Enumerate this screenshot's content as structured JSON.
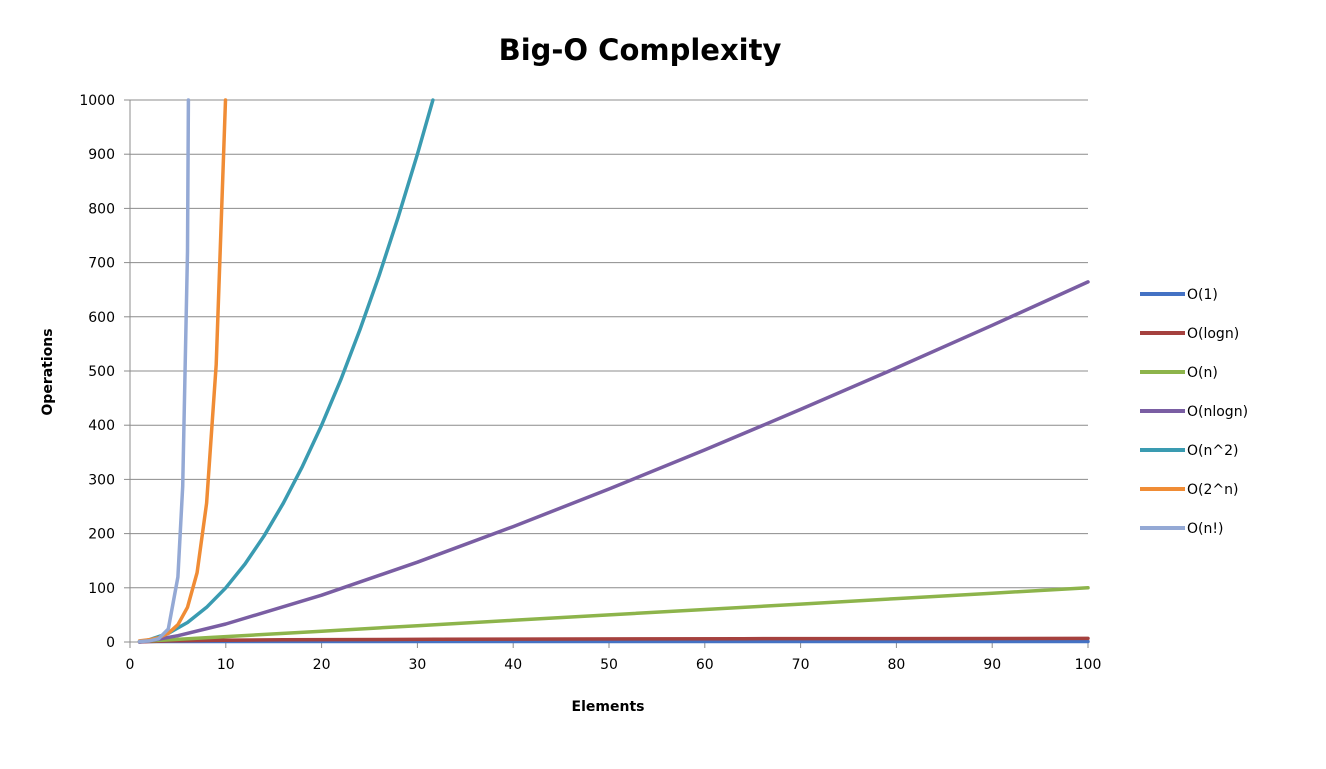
{
  "chart_data": {
    "type": "line",
    "title": "Big-O Complexity",
    "xlabel": "Elements",
    "ylabel": "Operations",
    "xlim": [
      0,
      100
    ],
    "ylim": [
      0,
      1000
    ],
    "x_ticks": [
      0,
      10,
      20,
      30,
      40,
      50,
      60,
      70,
      80,
      90,
      100
    ],
    "y_ticks": [
      0,
      100,
      200,
      300,
      400,
      500,
      600,
      700,
      800,
      900,
      1000
    ],
    "grid": "horizontal",
    "legend_position": "right",
    "series": [
      {
        "name": "O(1)",
        "color": "#4472c4",
        "x": [
          1,
          10,
          20,
          30,
          40,
          50,
          60,
          70,
          80,
          90,
          100
        ],
        "y": [
          1,
          1,
          1,
          1,
          1,
          1,
          1,
          1,
          1,
          1,
          1
        ]
      },
      {
        "name": "O(logn)",
        "color": "#a5413e",
        "x": [
          1,
          2,
          4,
          8,
          16,
          32,
          64,
          100
        ],
        "y": [
          0,
          1,
          2,
          3,
          4,
          5,
          6,
          6.64
        ]
      },
      {
        "name": "O(n)",
        "color": "#8db44b",
        "x": [
          1,
          10,
          20,
          30,
          40,
          50,
          60,
          70,
          80,
          90,
          100
        ],
        "y": [
          1,
          10,
          20,
          30,
          40,
          50,
          60,
          70,
          80,
          90,
          100
        ]
      },
      {
        "name": "O(nlogn)",
        "color": "#7a5ea3",
        "x": [
          1,
          2,
          5,
          10,
          20,
          30,
          40,
          50,
          60,
          70,
          80,
          90,
          100
        ],
        "y": [
          0,
          2,
          11.6,
          33.2,
          86.4,
          147.2,
          212.9,
          282.2,
          354.4,
          429.1,
          505.8,
          584.3,
          664.4
        ]
      },
      {
        "name": "O(n^2)",
        "color": "#3a9bb1",
        "x": [
          1,
          2,
          4,
          6,
          8,
          10,
          12,
          14,
          16,
          18,
          20,
          22,
          24,
          26,
          28,
          30,
          31.62
        ],
        "y": [
          1,
          4,
          16,
          36,
          64,
          100,
          144,
          196,
          256,
          324,
          400,
          484,
          576,
          676,
          784,
          900,
          1000
        ]
      },
      {
        "name": "O(2^n)",
        "color": "#f08c35",
        "x": [
          1,
          2,
          3,
          4,
          5,
          6,
          7,
          8,
          9,
          9.97
        ],
        "y": [
          2,
          4,
          8,
          16,
          32,
          64,
          128,
          256,
          512,
          1000
        ]
      },
      {
        "name": "O(n!)",
        "color": "#94a9d5",
        "x": [
          1,
          2,
          3,
          4,
          5,
          5.5,
          6,
          6.1
        ],
        "y": [
          1,
          2,
          6,
          24,
          120,
          287,
          720,
          1000
        ]
      }
    ]
  }
}
